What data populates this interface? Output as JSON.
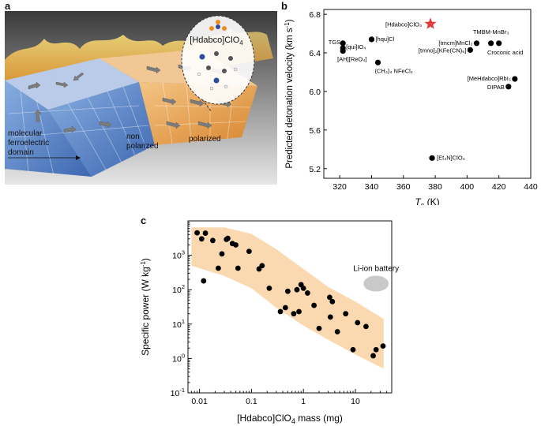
{
  "panels": {
    "a": "a",
    "b": "b",
    "c": "c"
  },
  "panel_a": {
    "molecule_label": "[Hdabco]ClO",
    "molecule_sub": "4",
    "domain_label_line1": "molecular",
    "domain_label_line2": "ferroelectric",
    "domain_label_line3": "domain",
    "non_polarized_line1": "non",
    "non_polarized_line2": "polarized",
    "polarized": "polarized",
    "colors": {
      "blue": "#5b86c9",
      "orange": "#e8a353",
      "grey": "#8a8a8a"
    }
  },
  "chart_data": [
    {
      "type": "scatter",
      "panel": "b",
      "xlabel_main": "T",
      "xlabel_sub": "c",
      "xlabel_unit": " (K)",
      "ylabel": "Predicted detonation velocity (km s",
      "ylabel_sup": "-1",
      "ylabel_end": ")",
      "xlim": [
        310,
        440
      ],
      "ylim": [
        5.1,
        6.85
      ],
      "xticks": [
        320,
        340,
        360,
        380,
        400,
        420,
        440
      ],
      "yticks": [
        5.2,
        5.6,
        6.0,
        6.4,
        6.8
      ],
      "ytick_labels": [
        "5.2",
        "5.6",
        "6.0",
        "6.4",
        "6.8"
      ],
      "points": [
        {
          "label": "TGS",
          "x": 322,
          "y": 6.5,
          "anchor": "end",
          "dx": -3,
          "dy": 1
        },
        {
          "label": "[qui]IO₄",
          "x": 322,
          "y": 6.45,
          "anchor": "start",
          "dx": 4,
          "dy": 1
        },
        {
          "label": "[AH][ReO₄]",
          "x": 322,
          "y": 6.42,
          "anchor": "start",
          "dx": -7,
          "dy": 13
        },
        {
          "label": "[hqu]Cl",
          "x": 340,
          "y": 6.54,
          "anchor": "start",
          "dx": 5,
          "dy": 2
        },
        {
          "label": "(CH₃)₄ NFeCl₄",
          "x": 344,
          "y": 6.3,
          "anchor": "start",
          "dx": -4,
          "dy": 13
        },
        {
          "label": "[tmcm]MnCl₃",
          "x": 406,
          "y": 6.5,
          "anchor": "end",
          "dx": -5,
          "dy": 2
        },
        {
          "label": "[tmno]₂[KFe(CN)₆]",
          "x": 402,
          "y": 6.43,
          "anchor": "end",
          "dx": -5,
          "dy": 3
        },
        {
          "label": "TMBM-MnBr₃",
          "x": 415,
          "y": 6.5,
          "anchor": "middle",
          "dx": 0,
          "dy": -12
        },
        {
          "label": "Croconic acid",
          "x": 420,
          "y": 6.5,
          "anchor": "middle",
          "dx": 8,
          "dy": 14
        },
        {
          "label": "[MeHdabco]RbI₃",
          "x": 430,
          "y": 6.13,
          "anchor": "end",
          "dx": -5,
          "dy": 2
        },
        {
          "label": "DIPAB",
          "x": 426,
          "y": 6.05,
          "anchor": "end",
          "dx": -5,
          "dy": 3
        },
        {
          "label": "[Et₄N]ClO₄",
          "x": 378,
          "y": 5.31,
          "anchor": "start",
          "dx": 6,
          "dy": 2
        }
      ],
      "highlight": {
        "label": "[Hdabco]ClO₄",
        "x": 377,
        "y": 6.7,
        "color": "#e23b3b"
      }
    },
    {
      "type": "scatter",
      "panel": "c",
      "xscale": "log",
      "yscale": "log",
      "xlabel": "[Hdabco]ClO",
      "xlabel_sub": "4",
      "xlabel_end": " mass (mg)",
      "ylabel": "Specific power (W kg",
      "ylabel_sup": "-1",
      "ylabel_end": ")",
      "xlim": [
        0.006,
        50
      ],
      "ylim": [
        0.1,
        10000
      ],
      "xticks": [
        0.01,
        0.1,
        1,
        10
      ],
      "xtick_labels": [
        "0.01",
        "0.1",
        "1",
        "10"
      ],
      "yticks": [
        0.1,
        1,
        10,
        100,
        1000
      ],
      "band_color": "#fbd9b0",
      "points": [
        [
          0.009,
          4500
        ],
        [
          0.011,
          3000
        ],
        [
          0.013,
          4400
        ],
        [
          0.012,
          180
        ],
        [
          0.018,
          2700
        ],
        [
          0.023,
          420
        ],
        [
          0.027,
          1100
        ],
        [
          0.033,
          2900
        ],
        [
          0.035,
          3100
        ],
        [
          0.043,
          2200
        ],
        [
          0.05,
          2000
        ],
        [
          0.055,
          420
        ],
        [
          0.09,
          1300
        ],
        [
          0.14,
          400
        ],
        [
          0.16,
          500
        ],
        [
          0.22,
          110
        ],
        [
          0.36,
          23
        ],
        [
          0.45,
          30
        ],
        [
          0.5,
          90
        ],
        [
          0.65,
          20
        ],
        [
          0.75,
          100
        ],
        [
          0.82,
          23
        ],
        [
          0.9,
          140
        ],
        [
          1.0,
          110
        ],
        [
          1.2,
          80
        ],
        [
          1.6,
          35
        ],
        [
          2.0,
          7.5
        ],
        [
          3.2,
          60
        ],
        [
          3.6,
          45
        ],
        [
          3.3,
          16
        ],
        [
          4.5,
          6
        ],
        [
          6.5,
          20
        ],
        [
          9.0,
          1.8
        ],
        [
          11.0,
          11
        ],
        [
          16.0,
          8.5
        ],
        [
          22.0,
          1.2
        ],
        [
          25.0,
          1.8
        ],
        [
          34.0,
          2.3
        ]
      ],
      "annotation": {
        "label": "Li-ion battery",
        "x": 25,
        "y": 150,
        "color": "#c9c9c9"
      }
    }
  ]
}
